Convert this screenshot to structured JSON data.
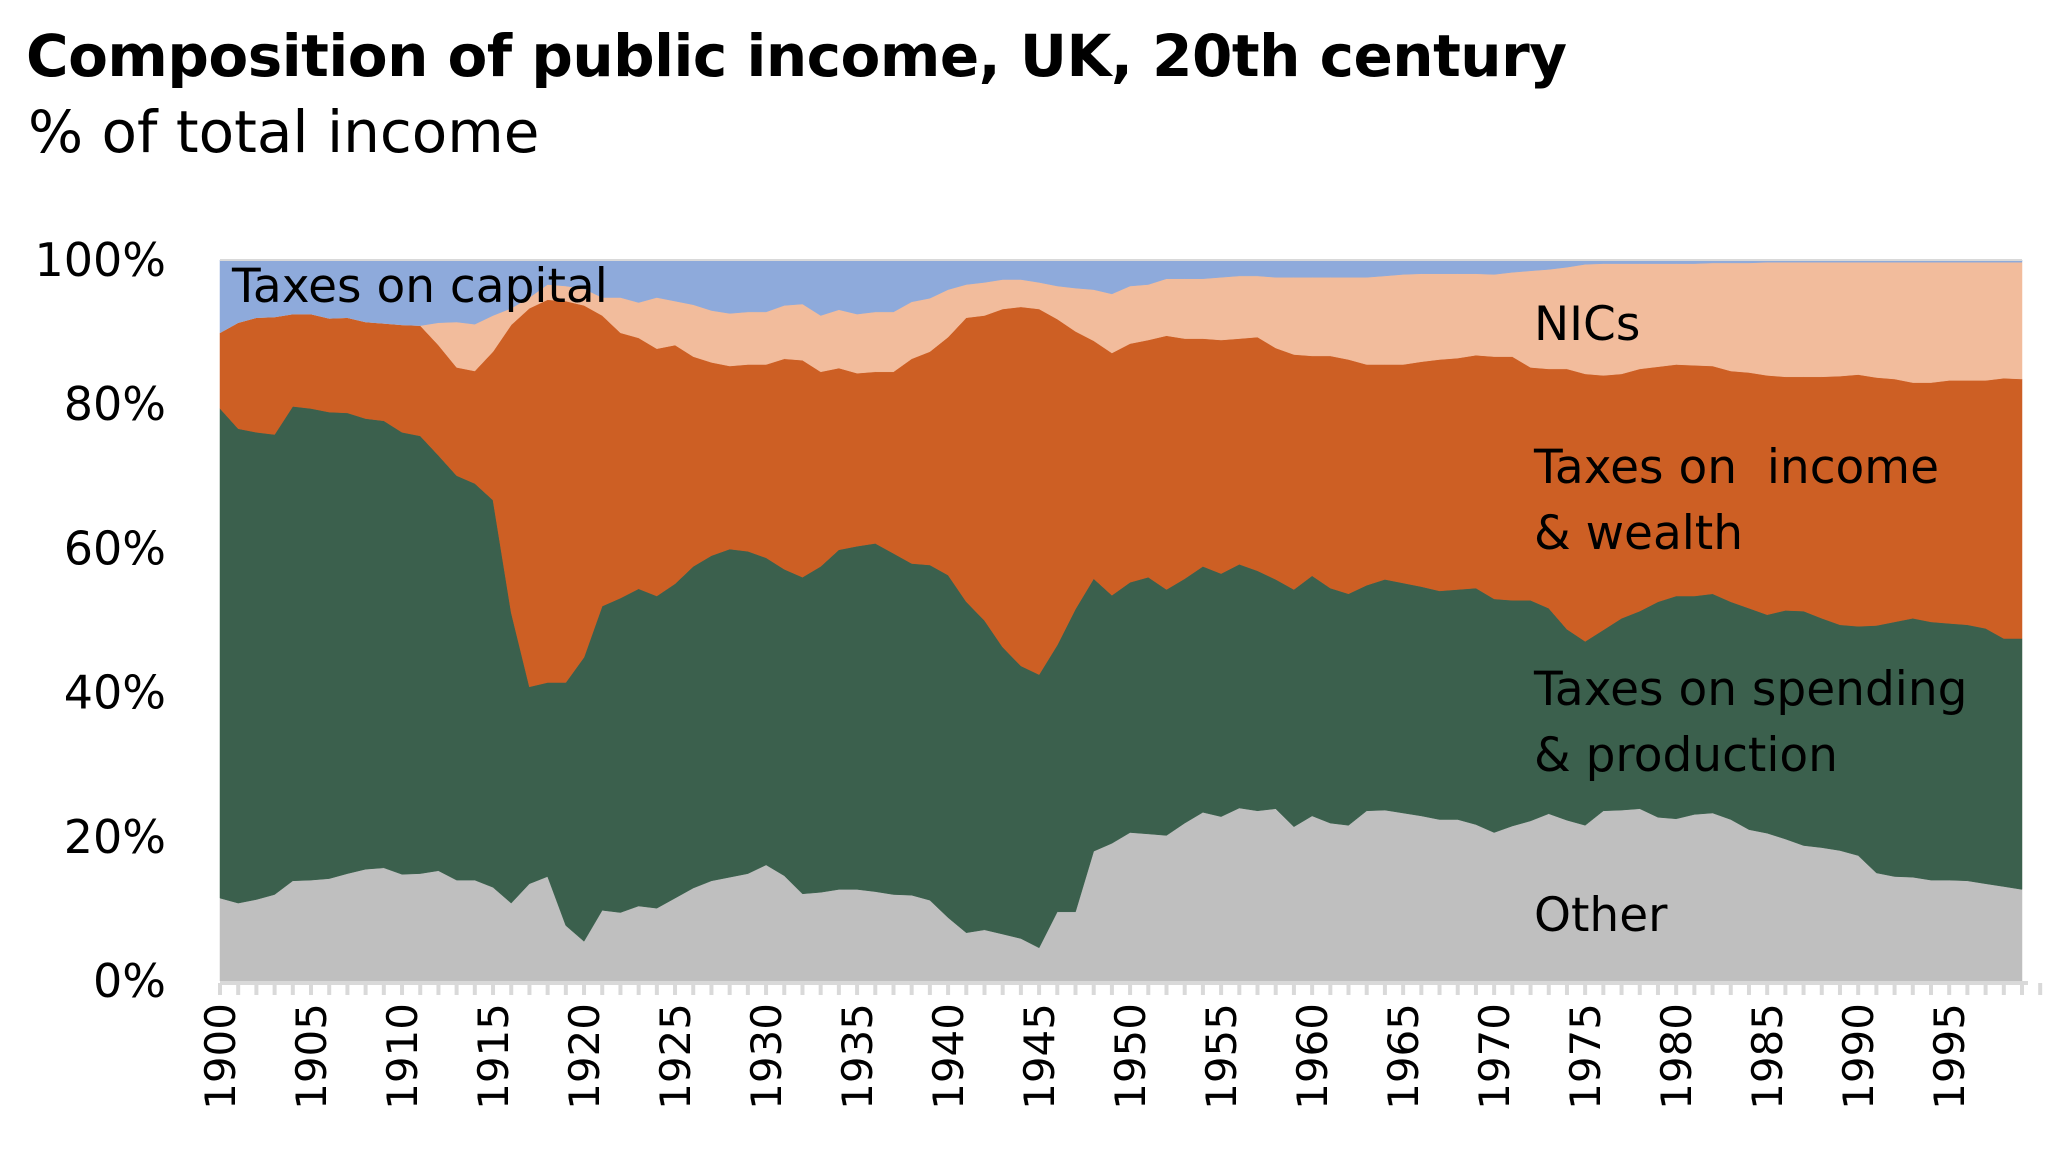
{
  "title": "Composition of public income, UK, 20th century",
  "subtitle": "% of total income",
  "chart_data": {
    "type": "area",
    "stacked": true,
    "title": "Composition of public income, UK, 20th century",
    "subtitle": "% of total income",
    "xlabel": "",
    "ylabel": "",
    "ylim": [
      0,
      100
    ],
    "y_ticks": [
      "0%",
      "20%",
      "40%",
      "60%",
      "80%",
      "100%"
    ],
    "y_tick_values": [
      0,
      20,
      40,
      60,
      80,
      100
    ],
    "x_tick_labels": [
      "1900",
      "1905",
      "1910",
      "1915",
      "1920",
      "1925",
      "1930",
      "1935",
      "1940",
      "1945",
      "1950",
      "1955",
      "1960",
      "1965",
      "1970",
      "1975",
      "1980",
      "1985",
      "1990",
      "1995"
    ],
    "grid": false,
    "legend": "inline labels",
    "x": [
      1900,
      1901,
      1902,
      1903,
      1904,
      1905,
      1906,
      1907,
      1908,
      1909,
      1910,
      1911,
      1912,
      1913,
      1914,
      1915,
      1916,
      1917,
      1918,
      1919,
      1920,
      1921,
      1922,
      1923,
      1924,
      1925,
      1926,
      1927,
      1928,
      1929,
      1930,
      1931,
      1932,
      1933,
      1934,
      1935,
      1936,
      1937,
      1938,
      1939,
      1940,
      1941,
      1942,
      1943,
      1944,
      1945,
      1946,
      1947,
      1948,
      1949,
      1950,
      1951,
      1952,
      1953,
      1954,
      1955,
      1956,
      1957,
      1958,
      1959,
      1960,
      1961,
      1962,
      1963,
      1964,
      1965,
      1966,
      1967,
      1968,
      1969,
      1970,
      1971,
      1972,
      1973,
      1974,
      1975,
      1976,
      1977,
      1978,
      1979,
      1980,
      1981,
      1982,
      1983,
      1984,
      1985,
      1986,
      1987,
      1988,
      1989,
      1990,
      1991,
      1992,
      1993,
      1994,
      1995,
      1996,
      1997,
      1998,
      1999
    ],
    "series": [
      {
        "name": "Other",
        "label_lines": [
          "Other"
        ],
        "color": "#bfbfbf",
        "values": [
          11.5,
          10.8,
          11.3,
          12.0,
          13.9,
          14.0,
          14.2,
          14.9,
          15.5,
          15.7,
          14.8,
          14.9,
          15.3,
          14.0,
          14.0,
          13.0,
          10.8,
          13.5,
          14.5,
          7.7,
          5.5,
          9.8,
          9.5,
          10.4,
          10.1,
          11.5,
          12.9,
          13.9,
          14.4,
          14.9,
          16.1,
          14.6,
          12.1,
          12.3,
          12.7,
          12.7,
          12.4,
          12.0,
          11.9,
          11.2,
          8.8,
          6.7,
          7.1,
          6.5,
          5.9,
          4.6,
          9.6,
          9.6,
          18.0,
          19.1,
          20.6,
          20.4,
          20.2,
          21.9,
          23.4,
          22.8,
          24.0,
          23.6,
          23.9,
          21.4,
          22.9,
          21.9,
          21.6,
          23.6,
          23.7,
          23.3,
          22.9,
          22.4,
          22.4,
          21.7,
          20.6,
          21.5,
          22.2,
          23.2,
          22.3,
          21.6,
          23.6,
          23.7,
          23.9,
          22.7,
          22.5,
          23.1,
          23.3,
          22.4,
          21.0,
          20.5,
          19.7,
          18.8,
          18.5,
          18.1,
          17.4,
          15.0,
          14.5,
          14.4,
          14.0,
          14.0,
          13.9,
          13.5,
          13.1,
          12.7
        ]
      },
      {
        "name": "Taxes on spending & production",
        "label_lines": [
          "Taxes on spending",
          "& production"
        ],
        "color": "#3b604d",
        "values": [
          67.9,
          65.8,
          64.8,
          63.8,
          65.8,
          65.4,
          64.7,
          63.9,
          62.5,
          62.0,
          61.3,
          60.7,
          57.6,
          56.1,
          55.0,
          53.7,
          40.3,
          27.3,
          26.9,
          33.7,
          39.4,
          42.2,
          43.6,
          44.0,
          43.3,
          43.6,
          44.6,
          45.1,
          45.5,
          44.7,
          42.6,
          42.5,
          43.9,
          45.2,
          47.1,
          47.6,
          48.3,
          47.3,
          46.0,
          46.5,
          47.5,
          45.9,
          42.9,
          39.8,
          37.8,
          37.9,
          37.0,
          42.0,
          37.8,
          34.4,
          34.7,
          35.6,
          34.1,
          33.9,
          34.1,
          33.7,
          33.8,
          33.3,
          31.8,
          32.9,
          33.3,
          32.6,
          32.1,
          31.3,
          32.0,
          31.9,
          31.8,
          31.7,
          31.9,
          32.8,
          32.4,
          31.3,
          30.6,
          28.5,
          26.5,
          25.5,
          25.1,
          26.6,
          27.4,
          29.9,
          30.9,
          30.3,
          30.4,
          30.2,
          30.7,
          30.3,
          31.7,
          32.5,
          31.8,
          31.3,
          31.8,
          34.3,
          35.3,
          35.9,
          35.8,
          35.6,
          35.5,
          35.4,
          34.4,
          34.8
        ]
      },
      {
        "name": "Taxes on  income & wealth",
        "label_lines": [
          "Taxes on  income",
          "& wealth"
        ],
        "color": "#cd5f24",
        "values": [
          10.5,
          14.7,
          15.9,
          16.3,
          12.8,
          13.1,
          13.0,
          13.2,
          13.4,
          13.5,
          14.9,
          15.3,
          15.3,
          15.0,
          15.6,
          20.6,
          39.9,
          52.5,
          53.1,
          52.9,
          48.8,
          40.3,
          36.8,
          34.8,
          34.3,
          33.1,
          29.1,
          26.8,
          25.4,
          25.9,
          26.8,
          29.2,
          30.1,
          27.0,
          25.2,
          24.0,
          23.8,
          25.2,
          28.4,
          29.6,
          33.0,
          39.4,
          42.3,
          46.9,
          49.8,
          50.7,
          45.2,
          38.5,
          33.0,
          33.6,
          33.1,
          32.9,
          35.2,
          33.3,
          31.6,
          32.4,
          31.3,
          32.4,
          32.1,
          32.6,
          30.5,
          32.2,
          32.5,
          30.6,
          29.8,
          30.3,
          31.2,
          32.1,
          32.1,
          32.3,
          33.6,
          33.8,
          32.3,
          33.2,
          36.1,
          37.1,
          35.3,
          33.9,
          33.6,
          32.6,
          32.1,
          32.0,
          31.6,
          32.0,
          32.7,
          33.2,
          32.4,
          32.5,
          33.5,
          34.5,
          34.9,
          34.4,
          33.7,
          32.7,
          33.2,
          33.7,
          33.9,
          34.4,
          36.1,
          36.0
        ]
      },
      {
        "name": "NICs",
        "label_lines": [
          "NICs"
        ],
        "color": "#f2bc9c",
        "values": [
          0,
          0,
          0,
          0,
          0,
          0,
          0,
          0,
          0,
          0,
          0,
          0,
          3.1,
          6.3,
          6.5,
          5.0,
          2.3,
          1.5,
          2.1,
          2.1,
          2.3,
          2.5,
          4.9,
          4.9,
          7.1,
          6.1,
          7.2,
          7.2,
          7.3,
          7.3,
          7.3,
          7.4,
          7.8,
          7.8,
          8.1,
          8.2,
          8.3,
          8.3,
          7.9,
          7.4,
          6.6,
          4.6,
          4.6,
          4.1,
          3.8,
          3.7,
          4.6,
          6.0,
          7.1,
          8.2,
          8.0,
          7.7,
          7.9,
          8.3,
          8.3,
          8.7,
          8.7,
          8.5,
          9.8,
          10.7,
          10.9,
          10.9,
          11.4,
          12.1,
          12.3,
          12.5,
          12.2,
          11.9,
          11.7,
          11.3,
          11.4,
          11.7,
          13.4,
          13.8,
          14.1,
          15.2,
          15.5,
          15.3,
          14.6,
          14.3,
          14.0,
          14.1,
          14.3,
          15.0,
          15.2,
          15.7,
          15.9,
          15.9,
          15.9,
          15.8,
          15.6,
          16.0,
          16.2,
          16.7,
          16.7,
          16.4,
          16.4,
          16.4,
          16.1,
          16.2
        ]
      },
      {
        "name": "Taxes on capital",
        "label_lines": [
          "Taxes on capital"
        ],
        "color": "#8eaadb",
        "values": [
          10.1,
          8.7,
          8.0,
          7.9,
          7.5,
          7.5,
          8.1,
          8.0,
          8.6,
          8.8,
          9.0,
          9.1,
          8.7,
          8.6,
          8.9,
          7.7,
          6.7,
          5.2,
          3.4,
          3.6,
          4.0,
          5.2,
          5.2,
          5.9,
          5.2,
          5.7,
          6.2,
          7.0,
          7.4,
          7.2,
          7.2,
          6.3,
          6.1,
          7.7,
          6.9,
          7.5,
          7.2,
          7.2,
          5.8,
          5.3,
          4.1,
          3.4,
          3.1,
          2.7,
          2.7,
          3.1,
          3.6,
          3.9,
          4.1,
          4.7,
          3.6,
          3.4,
          2.6,
          2.6,
          2.6,
          2.4,
          2.2,
          2.2,
          2.4,
          2.4,
          2.4,
          2.4,
          2.4,
          2.4,
          2.2,
          2.0,
          1.9,
          1.9,
          1.9,
          1.9,
          2.0,
          1.7,
          1.5,
          1.3,
          1.0,
          0.6,
          0.5,
          0.5,
          0.5,
          0.5,
          0.5,
          0.5,
          0.4,
          0.4,
          0.4,
          0.3,
          0.3,
          0.3,
          0.3,
          0.3,
          0.3,
          0.3,
          0.3,
          0.3,
          0.3,
          0.3,
          0.3,
          0.3,
          0.3,
          0.3
        ]
      }
    ]
  }
}
